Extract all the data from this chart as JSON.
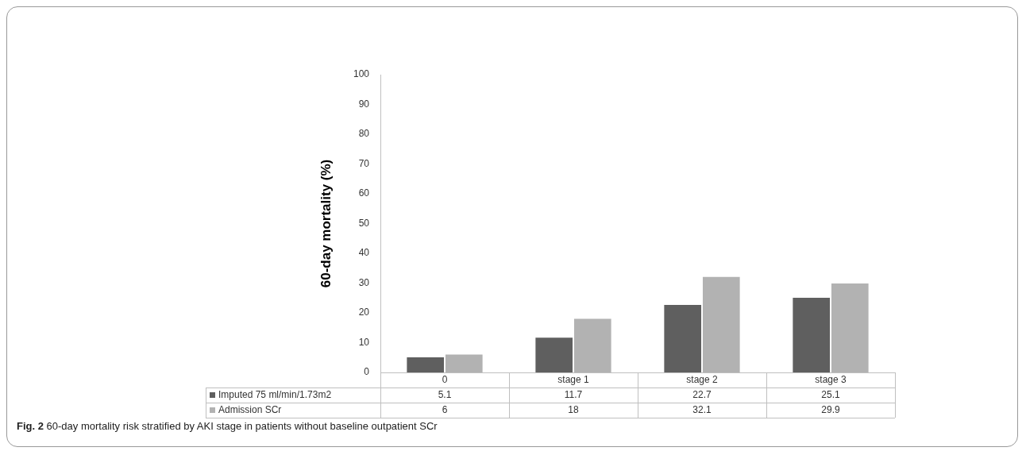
{
  "chart_data": {
    "type": "bar",
    "ylabel": "60-day mortality (%)",
    "categories": [
      "0",
      "stage 1",
      "stage 2",
      "stage 3"
    ],
    "series": [
      {
        "name": "Imputed 75 ml/min/1.73m2",
        "color": "#5f5f5f",
        "values": [
          5.1,
          11.7,
          22.7,
          25.1
        ]
      },
      {
        "name": "Admission SCr",
        "color": "#b2b2b2",
        "values": [
          6,
          18,
          32.1,
          29.9
        ]
      }
    ],
    "ylim": [
      0,
      100
    ],
    "yticks": [
      0,
      10,
      20,
      30,
      40,
      50,
      60,
      70,
      80,
      90,
      100
    ],
    "grid": false,
    "legend": "bottom",
    "data_labels": true,
    "annotations": [
      "Fig. 2 60-day mortality risk stratified by AKI stage in patients without baseline outpatient SCr"
    ]
  }
}
